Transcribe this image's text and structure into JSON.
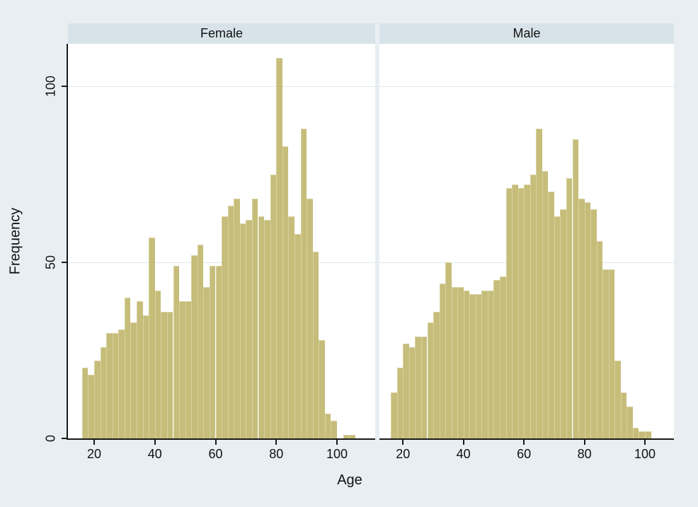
{
  "figure": {
    "x_axis_title": "Age",
    "y_axis_title": "Frequency"
  },
  "chart_data": {
    "type": "bar",
    "subtype": "faceted-histogram",
    "xlabel": "Age",
    "ylabel": "Frequency",
    "x_ticks": [
      20,
      40,
      60,
      80,
      100
    ],
    "y_ticks": [
      0,
      50,
      100
    ],
    "x_domain": [
      12,
      110
    ],
    "y_domain": [
      0,
      112
    ],
    "grid": "horizontal-only",
    "bin_width_years": 2,
    "bin_start_age": 16,
    "panels": [
      {
        "title": "Female",
        "values": [
          20,
          18,
          22,
          26,
          30,
          30,
          31,
          40,
          33,
          39,
          35,
          57,
          42,
          36,
          36,
          49,
          39,
          39,
          52,
          55,
          43,
          49,
          49,
          63,
          66,
          68,
          61,
          62,
          68,
          63,
          62,
          75,
          108,
          83,
          63,
          58,
          88,
          68,
          53,
          28,
          7,
          5,
          0,
          1,
          1
        ]
      },
      {
        "title": "Male",
        "values": [
          13,
          20,
          27,
          26,
          29,
          29,
          33,
          36,
          44,
          50,
          43,
          43,
          42,
          41,
          41,
          42,
          42,
          45,
          46,
          71,
          72,
          71,
          72,
          75,
          88,
          76,
          70,
          63,
          65,
          74,
          85,
          68,
          67,
          65,
          56,
          48,
          48,
          22,
          13,
          9,
          3,
          2,
          2
        ]
      }
    ],
    "colors": {
      "bar_fill": "#c5bd79",
      "bar_edge": "#d8d1a0",
      "outer_background": "#e8eef2",
      "panel_header": "#d8e3e9",
      "plot_background": "#ffffff",
      "gridline": "#dde9ed",
      "axis": "#1a1a1a",
      "text": "#111111"
    }
  }
}
